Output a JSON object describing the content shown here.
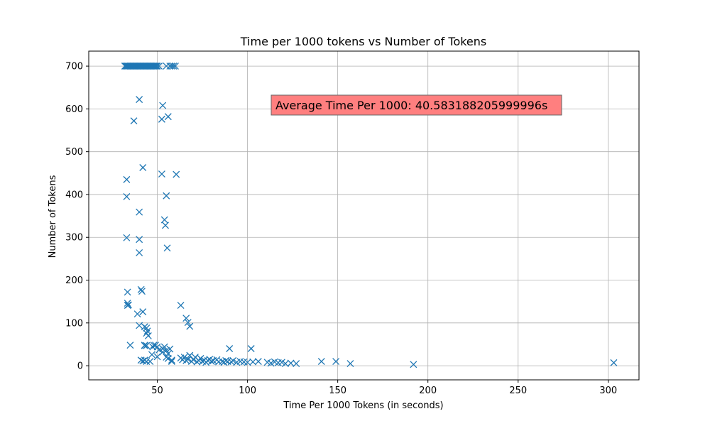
{
  "chart_data": {
    "type": "scatter",
    "title": "Time per 1000 tokens vs Number of Tokens",
    "xlabel": "Time Per 1000 Tokens (in seconds)",
    "ylabel": "Number of Tokens",
    "xlim": [
      12,
      317
    ],
    "ylim": [
      -33,
      735
    ],
    "xticks": [
      50,
      100,
      150,
      200,
      250,
      300
    ],
    "yticks": [
      0,
      100,
      200,
      300,
      400,
      500,
      600,
      700
    ],
    "grid": true,
    "marker": "x",
    "color": "#1f77b4",
    "annotation": {
      "text": "Average Time Per 1000: 40.583188205999996s",
      "background": "#ff7f7f"
    },
    "series": [
      {
        "points": [
          [
            32,
            700
          ],
          [
            32.5,
            700
          ],
          [
            33,
            700
          ],
          [
            33.5,
            700
          ],
          [
            34,
            700
          ],
          [
            34.5,
            700
          ],
          [
            35,
            700
          ],
          [
            35.5,
            700
          ],
          [
            36,
            700
          ],
          [
            36.5,
            700
          ],
          [
            37,
            700
          ],
          [
            37.5,
            700
          ],
          [
            38,
            700
          ],
          [
            38.5,
            700
          ],
          [
            39,
            700
          ],
          [
            39.5,
            700
          ],
          [
            40,
            700
          ],
          [
            40.5,
            700
          ],
          [
            41,
            700
          ],
          [
            41.5,
            700
          ],
          [
            42,
            700
          ],
          [
            42.5,
            700
          ],
          [
            43,
            700
          ],
          [
            43.5,
            700
          ],
          [
            44,
            700
          ],
          [
            44.5,
            700
          ],
          [
            45,
            700
          ],
          [
            45.5,
            700
          ],
          [
            46,
            700
          ],
          [
            46.5,
            700
          ],
          [
            47,
            700
          ],
          [
            47.5,
            700
          ],
          [
            48,
            700
          ],
          [
            48.5,
            700
          ],
          [
            49,
            700
          ],
          [
            49.5,
            700
          ],
          [
            50,
            700
          ],
          [
            51,
            700
          ],
          [
            55,
            700
          ],
          [
            57,
            700
          ],
          [
            58,
            700
          ],
          [
            59,
            700
          ],
          [
            60,
            700
          ],
          [
            40,
            622
          ],
          [
            37,
            572
          ],
          [
            53,
            608
          ],
          [
            52.5,
            576
          ],
          [
            56,
            582
          ],
          [
            42,
            463
          ],
          [
            52.5,
            448
          ],
          [
            60.5,
            447
          ],
          [
            33,
            435
          ],
          [
            33,
            395
          ],
          [
            55,
            397
          ],
          [
            40,
            359
          ],
          [
            54,
            341
          ],
          [
            54.5,
            328
          ],
          [
            33,
            299
          ],
          [
            40,
            295
          ],
          [
            55.5,
            275
          ],
          [
            40,
            264
          ],
          [
            41,
            178
          ],
          [
            41.5,
            174
          ],
          [
            33.5,
            172
          ],
          [
            33.5,
            146
          ],
          [
            33.5,
            141
          ],
          [
            34,
            142
          ],
          [
            42,
            126
          ],
          [
            39,
            121
          ],
          [
            63,
            141
          ],
          [
            66,
            111
          ],
          [
            67,
            101
          ],
          [
            68,
            92
          ],
          [
            40,
            94
          ],
          [
            43,
            91
          ],
          [
            44,
            88
          ],
          [
            44.5,
            81
          ],
          [
            44,
            76
          ],
          [
            45,
            70
          ],
          [
            35,
            48
          ],
          [
            43,
            48
          ],
          [
            44,
            47
          ],
          [
            43,
            47
          ],
          [
            48,
            48
          ],
          [
            49,
            48
          ],
          [
            47.5,
            44
          ],
          [
            50,
            44
          ],
          [
            53,
            40
          ],
          [
            54,
            44
          ],
          [
            51,
            37
          ],
          [
            55,
            36
          ],
          [
            57,
            39
          ],
          [
            53,
            32
          ],
          [
            56,
            28
          ],
          [
            47,
            26
          ],
          [
            50,
            21
          ],
          [
            55,
            20
          ],
          [
            56,
            17
          ],
          [
            58,
            13
          ],
          [
            58,
            10
          ],
          [
            41,
            13
          ],
          [
            42,
            11
          ],
          [
            43,
            13
          ],
          [
            44,
            10
          ],
          [
            46,
            10
          ],
          [
            63,
            18
          ],
          [
            64,
            14
          ],
          [
            65,
            20
          ],
          [
            66,
            12
          ],
          [
            67,
            15
          ],
          [
            68,
            24
          ],
          [
            69,
            10
          ],
          [
            70,
            14
          ],
          [
            71,
            20
          ],
          [
            72,
            9
          ],
          [
            73,
            12
          ],
          [
            74,
            17
          ],
          [
            75,
            10
          ],
          [
            76,
            13
          ],
          [
            77,
            8
          ],
          [
            78,
            12
          ],
          [
            79,
            15
          ],
          [
            80,
            10
          ],
          [
            81,
            12
          ],
          [
            83,
            14
          ],
          [
            84,
            9
          ],
          [
            86,
            10
          ],
          [
            87,
            8
          ],
          [
            88,
            12
          ],
          [
            89,
            10
          ],
          [
            90,
            40
          ],
          [
            91,
            9
          ],
          [
            92,
            12
          ],
          [
            94,
            8
          ],
          [
            96,
            10
          ],
          [
            98,
            9
          ],
          [
            100,
            8
          ],
          [
            102,
            40
          ],
          [
            103,
            9
          ],
          [
            106,
            10
          ],
          [
            111,
            8
          ],
          [
            113,
            6
          ],
          [
            115,
            9
          ],
          [
            117,
            7
          ],
          [
            119,
            8
          ],
          [
            121,
            5
          ],
          [
            124,
            6
          ],
          [
            127,
            5
          ],
          [
            141,
            10
          ],
          [
            149,
            10
          ],
          [
            157,
            5
          ],
          [
            192,
            3
          ],
          [
            303,
            7
          ]
        ]
      }
    ]
  }
}
